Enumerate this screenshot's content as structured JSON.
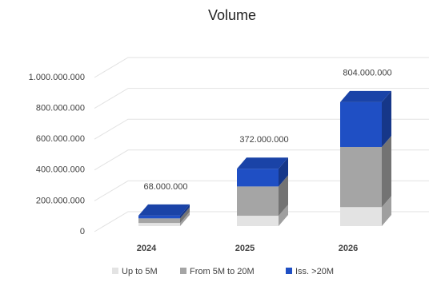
{
  "chart_data": {
    "type": "bar3d-stacked",
    "title": "Volume",
    "categories": [
      "2024",
      "2025",
      "2026"
    ],
    "series": [
      {
        "name": "Up to 5M",
        "color": "#e3e3e3",
        "values": [
          20000000,
          67000000,
          123000000
        ]
      },
      {
        "name": "From 5M to 20M",
        "color": "#a5a5a5",
        "values": [
          30000000,
          190000000,
          390000000
        ]
      },
      {
        "name": "Iss. >20M",
        "color": "#1f4fc4",
        "values": [
          18000000,
          115000000,
          291000000
        ]
      }
    ],
    "totals": [
      68000000,
      372000000,
      804000000
    ],
    "total_labels": [
      "68.000.000",
      "372.000.000",
      "804.000.000"
    ],
    "ylim": [
      0,
      1000000000
    ],
    "yticks": [
      0,
      {
        "value": 200000000,
        "label": "200.000.000"
      },
      {
        "value": 400000000,
        "label": "400.000.000"
      },
      {
        "value": 600000000,
        "label": "600.000.000"
      },
      {
        "value": 800000000,
        "label": "800.000.000"
      },
      {
        "value": 1000000000,
        "label": "1.000.000.000"
      }
    ],
    "grid": true
  }
}
